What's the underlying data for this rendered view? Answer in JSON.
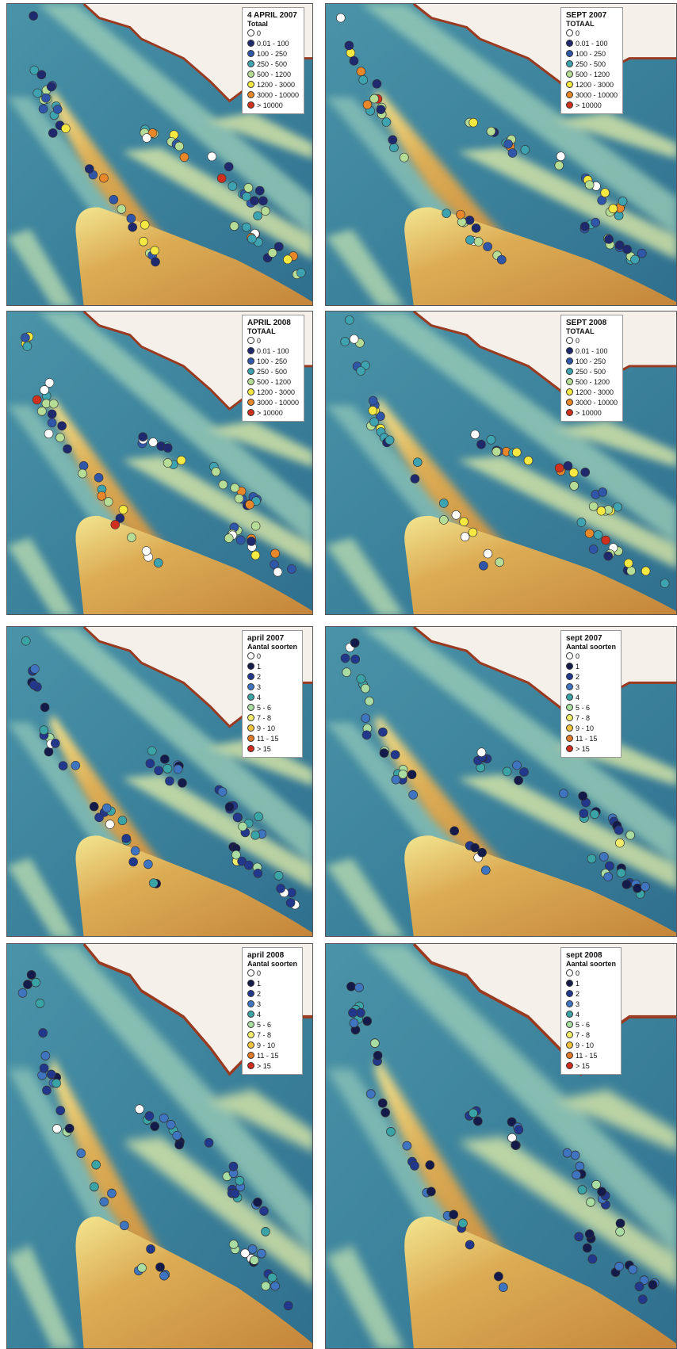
{
  "panels": [
    {
      "title": "4 APRIL 2007",
      "subtitle": "Totaal",
      "classes": [
        {
          "label": "0",
          "color": "#ffffff"
        },
        {
          "label": "0.01 - 100",
          "color": "#1f2a6e"
        },
        {
          "label": "100 - 250",
          "color": "#2f56a8"
        },
        {
          "label": "250 - 500",
          "color": "#3ea3b0"
        },
        {
          "label": "500 - 1200",
          "color": "#b6dd96"
        },
        {
          "label": "1200 - 3000",
          "color": "#f5e840"
        },
        {
          "label": "3000 - 10000",
          "color": "#e8862a"
        },
        {
          "label": "> 10000",
          "color": "#d0301e"
        }
      ]
    },
    {
      "title": "SEPT 2007",
      "subtitle": "TOTAAL",
      "classes": [
        {
          "label": "0",
          "color": "#ffffff"
        },
        {
          "label": "0.01 - 100",
          "color": "#1f2a6e"
        },
        {
          "label": "100 - 250",
          "color": "#2f56a8"
        },
        {
          "label": "250 - 500",
          "color": "#3ea3b0"
        },
        {
          "label": "500 - 1200",
          "color": "#b6dd96"
        },
        {
          "label": "1200 - 3000",
          "color": "#f5e840"
        },
        {
          "label": "3000 - 10000",
          "color": "#e8862a"
        },
        {
          "label": "> 10000",
          "color": "#d0301e"
        }
      ]
    },
    {
      "title": "APRIL 2008",
      "subtitle": "TOTAAL",
      "classes": [
        {
          "label": "0",
          "color": "#ffffff"
        },
        {
          "label": "0.01 - 100",
          "color": "#1f2a6e"
        },
        {
          "label": "100 - 250",
          "color": "#2f56a8"
        },
        {
          "label": "250 - 500",
          "color": "#3ea3b0"
        },
        {
          "label": "500 - 1200",
          "color": "#b6dd96"
        },
        {
          "label": "1200 - 3000",
          "color": "#f5e840"
        },
        {
          "label": "3000 - 10000",
          "color": "#e8862a"
        },
        {
          "label": "> 10000",
          "color": "#d0301e"
        }
      ]
    },
    {
      "title": "SEPT 2008",
      "subtitle": "TOTAAL",
      "classes": [
        {
          "label": "0",
          "color": "#ffffff"
        },
        {
          "label": "0.01 - 100",
          "color": "#1f2a6e"
        },
        {
          "label": "100 - 250",
          "color": "#2f56a8"
        },
        {
          "label": "250 - 500",
          "color": "#3ea3b0"
        },
        {
          "label": "500 - 1200",
          "color": "#b6dd96"
        },
        {
          "label": "1200 - 3000",
          "color": "#f5e840"
        },
        {
          "label": "3000 - 10000",
          "color": "#e8862a"
        },
        {
          "label": "> 10000",
          "color": "#d0301e"
        }
      ]
    },
    {
      "title": "april 2007",
      "subtitle": "Aantal soorten",
      "classes": [
        {
          "label": "0",
          "color": "#ffffff"
        },
        {
          "label": "1",
          "color": "#141a4a"
        },
        {
          "label": "2",
          "color": "#22388c"
        },
        {
          "label": "3",
          "color": "#3e74c0"
        },
        {
          "label": "4",
          "color": "#3aa3a6"
        },
        {
          "label": "5 - 6",
          "color": "#a8dca0"
        },
        {
          "label": "7 - 8",
          "color": "#f2ec6a"
        },
        {
          "label": "9 - 10",
          "color": "#f2c23a"
        },
        {
          "label": "11 - 15",
          "color": "#e07a28"
        },
        {
          "label": "> 15",
          "color": "#d02c1e"
        }
      ]
    },
    {
      "title": "sept 2007",
      "subtitle": "Aantal soorten",
      "classes": [
        {
          "label": "0",
          "color": "#ffffff"
        },
        {
          "label": "1",
          "color": "#141a4a"
        },
        {
          "label": "2",
          "color": "#22388c"
        },
        {
          "label": "3",
          "color": "#3e74c0"
        },
        {
          "label": "4",
          "color": "#3aa3a6"
        },
        {
          "label": "5 - 6",
          "color": "#a8dca0"
        },
        {
          "label": "7 - 8",
          "color": "#f2ec6a"
        },
        {
          "label": "9 - 10",
          "color": "#f2c23a"
        },
        {
          "label": "11 - 15",
          "color": "#e07a28"
        },
        {
          "label": "> 15",
          "color": "#d02c1e"
        }
      ]
    },
    {
      "title": "april 2008",
      "subtitle": "Aantal soorten",
      "classes": [
        {
          "label": "0",
          "color": "#ffffff"
        },
        {
          "label": "1",
          "color": "#141a4a"
        },
        {
          "label": "2",
          "color": "#22388c"
        },
        {
          "label": "3",
          "color": "#3e74c0"
        },
        {
          "label": "4",
          "color": "#3aa3a6"
        },
        {
          "label": "5 - 6",
          "color": "#a8dca0"
        },
        {
          "label": "7 - 8",
          "color": "#f2ec6a"
        },
        {
          "label": "9 - 10",
          "color": "#f2c23a"
        },
        {
          "label": "11 - 15",
          "color": "#e07a28"
        },
        {
          "label": "> 15",
          "color": "#d02c1e"
        }
      ]
    },
    {
      "title": "sept 2008",
      "subtitle": "Aantal soorten",
      "classes": [
        {
          "label": "0",
          "color": "#ffffff"
        },
        {
          "label": "1",
          "color": "#141a4a"
        },
        {
          "label": "2",
          "color": "#22388c"
        },
        {
          "label": "3",
          "color": "#3e74c0"
        },
        {
          "label": "4",
          "color": "#3aa3a6"
        },
        {
          "label": "5 - 6",
          "color": "#a8dca0"
        },
        {
          "label": "7 - 8",
          "color": "#f2ec6a"
        },
        {
          "label": "9 - 10",
          "color": "#f2c23a"
        },
        {
          "label": "11 - 15",
          "color": "#e07a28"
        },
        {
          "label": "> 15",
          "color": "#d02c1e"
        }
      ]
    }
  ]
}
